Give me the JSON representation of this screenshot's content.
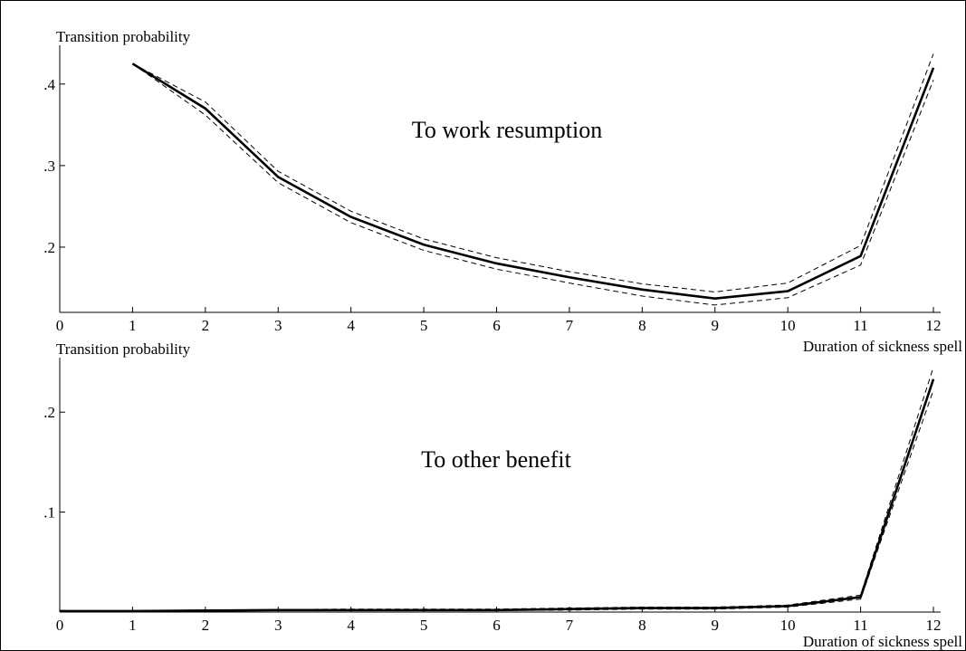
{
  "chart_data": [
    {
      "type": "line",
      "ylabel": "Transition probability",
      "xlabel": "Duration of sickness spell",
      "annotation": "To work resumption",
      "x": [
        1,
        2,
        3,
        4,
        5,
        6,
        7,
        8,
        9,
        10,
        11,
        12
      ],
      "xlim": [
        0,
        12
      ],
      "xticks": [
        0,
        1,
        2,
        3,
        4,
        5,
        6,
        7,
        8,
        9,
        10,
        11,
        12
      ],
      "ylim": [
        0.12,
        0.442
      ],
      "yticks": [
        {
          "value": 0.2,
          "label": ".2"
        },
        {
          "value": 0.3,
          "label": ".3"
        },
        {
          "value": 0.4,
          "label": ".4"
        }
      ],
      "series": [
        {
          "color": "#000000",
          "linestyle": "solid",
          "values": [
            0.425,
            0.37,
            0.286,
            0.237,
            0.203,
            0.18,
            0.163,
            0.148,
            0.137,
            0.146,
            0.189,
            0.42
          ]
        },
        {
          "color": "#000000",
          "linestyle": "dashed",
          "values": [
            0.425,
            0.378,
            0.293,
            0.244,
            0.21,
            0.187,
            0.17,
            0.155,
            0.145,
            0.156,
            0.202,
            0.437
          ]
        },
        {
          "color": "#000000",
          "linestyle": "dashed",
          "values": [
            0.425,
            0.362,
            0.279,
            0.23,
            0.196,
            0.173,
            0.156,
            0.14,
            0.129,
            0.138,
            0.178,
            0.405
          ]
        }
      ]
    },
    {
      "type": "line",
      "ylabel": "Transition probability",
      "xlabel": "Duration of sickness spell",
      "annotation": "To other benefit",
      "x": [
        0,
        1,
        2,
        3,
        4,
        5,
        6,
        7,
        8,
        9,
        10,
        11,
        12
      ],
      "xlim": [
        0,
        12
      ],
      "xticks": [
        0,
        1,
        2,
        3,
        4,
        5,
        6,
        7,
        8,
        9,
        10,
        11,
        12
      ],
      "ylim": [
        0,
        0.25
      ],
      "yticks": [
        {
          "value": 0.1,
          "label": ".1"
        },
        {
          "value": 0.2,
          "label": ".2"
        }
      ],
      "series": [
        {
          "color": "#000000",
          "linestyle": "solid",
          "values": [
            0.001,
            0.001,
            0.0015,
            0.002,
            0.002,
            0.002,
            0.002,
            0.003,
            0.004,
            0.004,
            0.006,
            0.015,
            0.233
          ]
        },
        {
          "color": "#000000",
          "linestyle": "dashed",
          "values": [
            0.0015,
            0.0015,
            0.002,
            0.0025,
            0.003,
            0.003,
            0.003,
            0.004,
            0.005,
            0.005,
            0.007,
            0.017,
            0.245
          ]
        },
        {
          "color": "#000000",
          "linestyle": "dashed",
          "values": [
            0.0005,
            0.0005,
            0.001,
            0.0015,
            0.0015,
            0.0015,
            0.0015,
            0.002,
            0.003,
            0.003,
            0.005,
            0.013,
            0.222
          ]
        }
      ]
    }
  ]
}
